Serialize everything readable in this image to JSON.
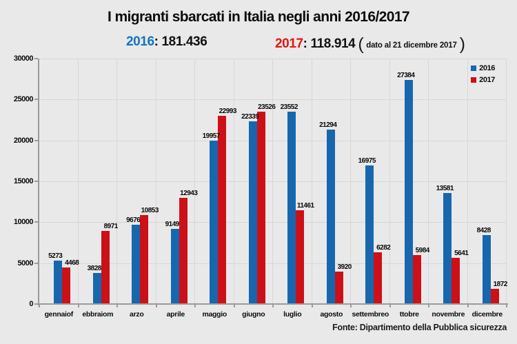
{
  "title": "I migranti sbarcati in Italia negli anni 2016/2017",
  "subtitle": {
    "sep": ":",
    "y2016": {
      "label": "2016",
      "value": "181.436"
    },
    "y2017": {
      "label": "2017",
      "value": "118.914"
    },
    "note": {
      "open": "(",
      "text": "dato al 21 dicembre 2017",
      "close": ")"
    }
  },
  "source": "Fonte: Dipartimento della Pubblica sicurezza",
  "colors": {
    "background": "#e9e9e9",
    "gridline": "#d7d7d7",
    "axis": "#9b9b9b",
    "bar_2016": "#1767ae",
    "bar_2017": "#cd1017",
    "subtitle_2016": "#1274be",
    "subtitle_2017": "#e8140c"
  },
  "chart_data": {
    "type": "bar",
    "title": "I migranti sbarcati in Italia negli anni 2016/2017",
    "categories": [
      "gennaiof",
      "ebbraiom",
      "arzo",
      "aprile",
      "maggio",
      "giugno",
      "luglio",
      "agosto",
      "settembreo",
      "ttobre",
      "novembre",
      "dicembre"
    ],
    "series": [
      {
        "name": "2016",
        "color": "#1767ae",
        "values": [
          5273,
          3828,
          9676,
          9149,
          19957,
          22339,
          23552,
          21294,
          16975,
          27384,
          13581,
          8428
        ]
      },
      {
        "name": "2017",
        "color": "#cd1017",
        "values": [
          4468,
          8971,
          10853,
          12943,
          22993,
          23526,
          11461,
          3920,
          6282,
          5984,
          5641,
          1872
        ]
      }
    ],
    "totals": {
      "2016": "181.436",
      "2017": "118.914"
    },
    "xlabel": "",
    "ylabel": "",
    "ylim": [
      0,
      30000
    ],
    "yticks": [
      0,
      5000,
      10000,
      15000,
      20000,
      25000,
      30000
    ],
    "grid": true,
    "legend_position": "top-right"
  }
}
